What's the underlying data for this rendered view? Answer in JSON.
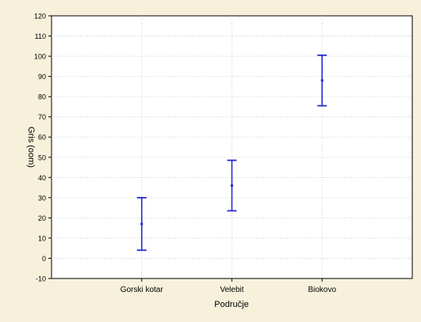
{
  "chart_data": {
    "type": "errorbar",
    "title": "",
    "xlabel": "Područje",
    "ylabel": "Gris (oom)",
    "ylim": [
      -10,
      120
    ],
    "yticks": [
      -10,
      0,
      10,
      20,
      30,
      40,
      50,
      60,
      70,
      80,
      90,
      100,
      110,
      120
    ],
    "grid": true,
    "legend": "none",
    "categories": [
      "Gorski kotar",
      "Velebit",
      "Biokovo"
    ],
    "series": [
      {
        "color": "#2a2ad0",
        "points": [
          {
            "category": "Gorski kotar",
            "mean": 17,
            "lower": 4,
            "upper": 30
          },
          {
            "category": "Velebit",
            "mean": 36,
            "lower": 23.5,
            "upper": 48.5
          },
          {
            "category": "Biokovo",
            "mean": 88,
            "lower": 75.5,
            "upper": 100.5
          }
        ]
      }
    ]
  },
  "colors": {
    "background": "#f7f1db",
    "plot_background": "#ffffff",
    "grid": "#c8c8c8",
    "axis": "#000000",
    "series": "#2a2ad0"
  }
}
